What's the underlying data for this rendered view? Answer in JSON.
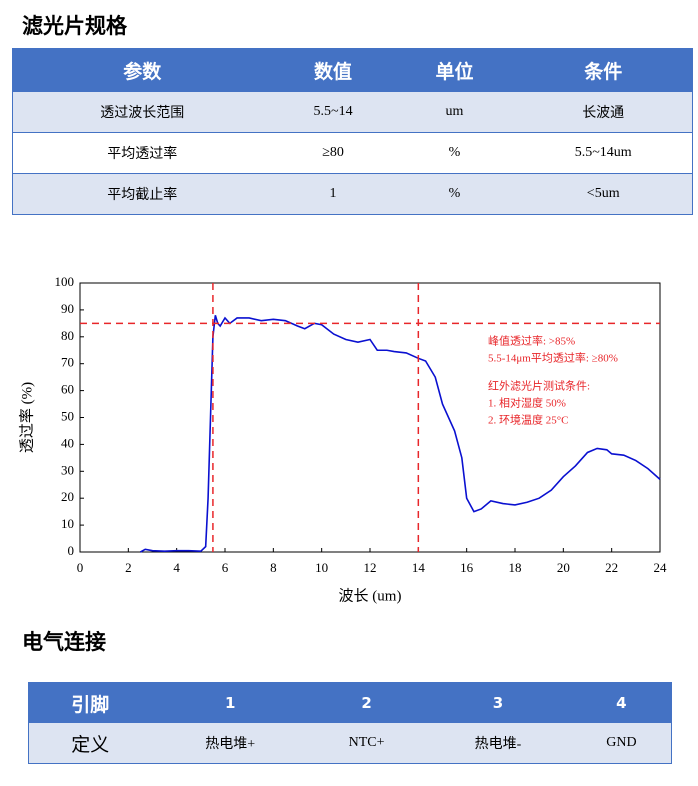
{
  "spec": {
    "title": "滤光片规格",
    "header": [
      "参数",
      "数值",
      "单位",
      "条件"
    ],
    "rows": [
      [
        "透过波长范围",
        "5.5~14",
        "um",
        "长波通"
      ],
      [
        "平均透过率",
        "≥80",
        "%",
        "5.5~14um"
      ],
      [
        "平均截止率",
        "1",
        "%",
        "<5um"
      ]
    ]
  },
  "chart_data": {
    "type": "line",
    "xlabel": "波长 (um)",
    "ylabel": "透过率 (%)",
    "xlim": [
      0,
      24
    ],
    "ylim": [
      0,
      100
    ],
    "xticks": [
      0,
      2,
      4,
      6,
      8,
      10,
      12,
      14,
      16,
      18,
      20,
      22,
      24
    ],
    "yticks": [
      0,
      10,
      20,
      30,
      40,
      50,
      60,
      70,
      80,
      90,
      100
    ],
    "vlines": [
      5.5,
      14
    ],
    "hlines": [
      85
    ],
    "ref_color": "#e8262a",
    "annotations": [
      "峰值透过率: >85%",
      "5.5-14μm平均透过率: ≥80%",
      "红外滤光片测试条件:",
      "1. 相对湿度 50%",
      "2. 环境温度 25°C"
    ],
    "series": [
      {
        "color": "#0a10d0",
        "x": [
          2.5,
          2.7,
          3,
          3.5,
          4,
          4.5,
          5,
          5.2,
          5.3,
          5.4,
          5.5,
          5.6,
          5.7,
          5.8,
          6,
          6.2,
          6.5,
          7,
          7.5,
          8,
          8.5,
          9,
          9.3,
          9.7,
          10,
          10.5,
          11,
          11.5,
          12,
          12.3,
          12.7,
          13,
          13.5,
          14,
          14.3,
          14.7,
          15,
          15.5,
          15.8,
          16,
          16.3,
          16.6,
          17,
          17.5,
          18,
          18.5,
          19,
          19.5,
          20,
          20.5,
          21,
          21.4,
          21.8,
          22,
          22.5,
          23,
          23.5,
          24
        ],
        "values": [
          0,
          1,
          0.5,
          0.3,
          0.5,
          0.5,
          0.3,
          2,
          20,
          50,
          80,
          88,
          85,
          84,
          87,
          85,
          87,
          87,
          86,
          86.5,
          86,
          84,
          83,
          85,
          84.5,
          81,
          79,
          78,
          79,
          75,
          75,
          74.5,
          74,
          72,
          71,
          65,
          55,
          45,
          35,
          20,
          15,
          16,
          19,
          18,
          17.5,
          18.5,
          20,
          23,
          28,
          32,
          37,
          38.5,
          38,
          36.5,
          36,
          34,
          31,
          27
        ]
      }
    ]
  },
  "pins": {
    "title": "电气连接",
    "header": [
      "引脚",
      "1",
      "2",
      "3",
      "4"
    ],
    "row": [
      "定义",
      "热电堆+",
      "NTC+",
      "热电堆-",
      "GND"
    ]
  }
}
